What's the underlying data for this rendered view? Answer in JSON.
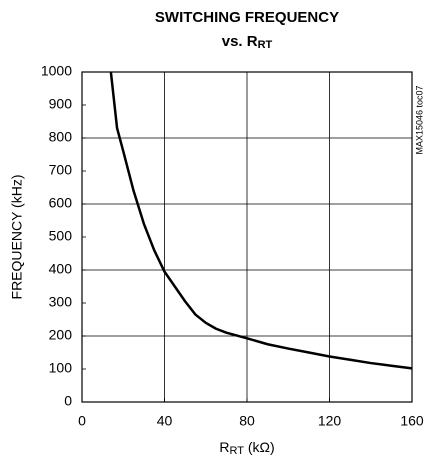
{
  "chart_data": {
    "type": "line",
    "title": "SWITCHING FREQUENCY",
    "subtitle": [
      "vs. R",
      "RT"
    ],
    "xlabel": [
      "R",
      "RT",
      " (kΩ)"
    ],
    "ylabel": "FREQUENCY (kHz)",
    "annotation": "MAX15046 toc07",
    "x": [
      14,
      17,
      20,
      25,
      30,
      35,
      40,
      45,
      50,
      55,
      60,
      65,
      70,
      80,
      90,
      100,
      110,
      120,
      130,
      140,
      150,
      160
    ],
    "series": [
      {
        "name": "frequency",
        "color": "#000000",
        "values": [
          1000,
          830,
          760,
          640,
          540,
          460,
          395,
          350,
          305,
          265,
          240,
          222,
          210,
          193,
          175,
          162,
          150,
          138,
          128,
          118,
          110,
          102
        ]
      }
    ],
    "xlim": [
      0,
      160
    ],
    "xticks": [
      0,
      40,
      80,
      120,
      160
    ],
    "ylim": [
      0,
      1000
    ],
    "yticks": [
      0,
      100,
      200,
      300,
      400,
      500,
      600,
      700,
      800,
      900,
      1000
    ],
    "xgrid": [
      40,
      80,
      120
    ],
    "ygrid": [
      200,
      400,
      600,
      800
    ]
  }
}
